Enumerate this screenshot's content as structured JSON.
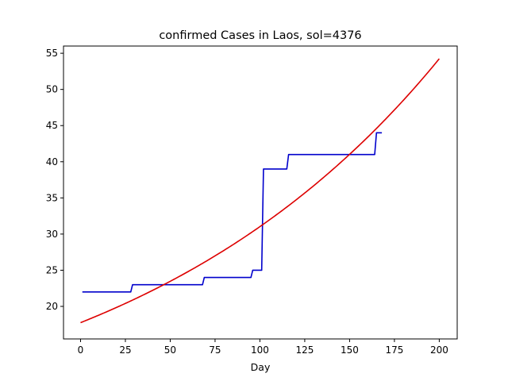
{
  "chart_data": {
    "type": "line",
    "title": "confirmed Cases in Laos, sol=4376",
    "xlabel": "Day",
    "ylabel": "",
    "xlim": [
      -9.5,
      210
    ],
    "ylim": [
      15.5,
      56
    ],
    "xticks": [
      0,
      25,
      50,
      75,
      100,
      125,
      150,
      175,
      200
    ],
    "yticks": [
      20,
      25,
      30,
      35,
      40,
      45,
      50,
      55
    ],
    "grid": false,
    "series": [
      {
        "color": "#0000cc",
        "style": "step",
        "x": [
          1,
          28,
          29,
          68,
          69,
          95,
          96,
          101,
          102,
          115,
          116,
          164,
          165,
          168
        ],
        "y": [
          22,
          22,
          23,
          23,
          24,
          24,
          25,
          25,
          39,
          39,
          41,
          41,
          44,
          44
        ]
      },
      {
        "color": "#dd0000",
        "style": "curve",
        "model": {
          "type": "exponential",
          "a": 17.75,
          "b": 0.005585
        },
        "x_range": [
          0,
          200
        ]
      }
    ]
  }
}
